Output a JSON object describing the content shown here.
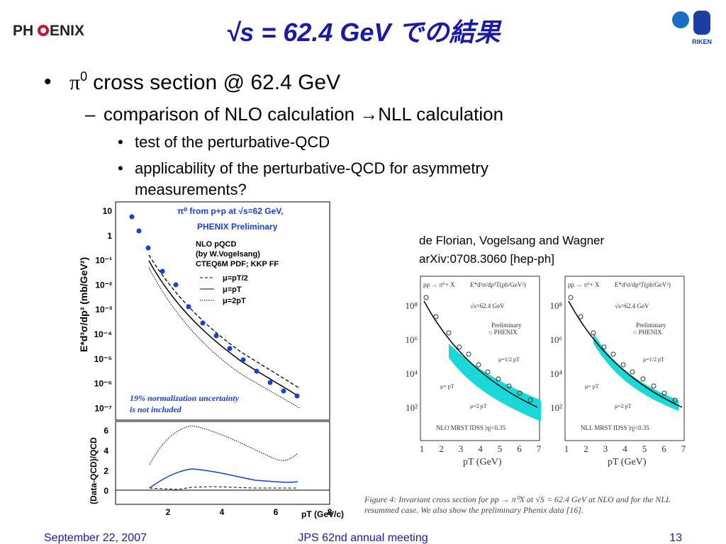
{
  "header": {
    "title": "√s = 62.4 GeV での結果",
    "logo_left": [
      "PH",
      "ENIX"
    ],
    "logo_right": "RIKEN"
  },
  "bullet1": {
    "symbol": "π",
    "sup": "0",
    "text": "cross section @ 62.4 GeV"
  },
  "bullet2": "comparison of NLO calculation →NLL calculation",
  "bullet3": [
    "test of the perturbative-QCD",
    "applicability of the perturbative-QCD for asymmetry",
    "measurements?"
  ],
  "left_plot": {
    "legend": [
      "π⁰ from p+p at √s=62 GeV,",
      "PHENIX Preliminary",
      "NLO pQCD",
      "(by W.Vogelsang)",
      "CTEQ6M PDF; KKP FF"
    ],
    "curves": [
      "μ=pT/2",
      "μ=pT",
      "μ=2pT"
    ],
    "ylabel": "E*d³σ/dp³ (mb/GeV²)",
    "yticks": [
      "10",
      "1",
      "10⁻¹",
      "10⁻²",
      "10⁻³",
      "10⁻⁴",
      "10⁻⁵",
      "10⁻⁶",
      "10⁻⁷"
    ],
    "note": [
      "19% normalization uncertainty",
      "is not included"
    ],
    "ratio_ylabel": "(Data-QCD)/QCD",
    "ratio_yticks": [
      "6",
      "4",
      "2",
      "0"
    ],
    "xticks": [
      "2",
      "4",
      "6",
      "8"
    ],
    "xlabel": "pT (GeV/c)"
  },
  "citation": [
    "de Florian, Vogelsang and Wagner",
    "arXiv:0708.3060 [hep-ph]"
  ],
  "right_plots": [
    {
      "process": "pp → π⁰+ X",
      "quantity": "E*d³σ/dp³T(pb/GeV²)",
      "energy": "√s=62.4 GeV",
      "data": [
        "Preliminary",
        "○ PHENIX"
      ],
      "scales": [
        "μ=1/2 pT",
        "μ= pT",
        "μ=2 pT"
      ],
      "footer": "NLO   MRST   fDSS   |η|<0.35"
    },
    {
      "process": "pp → π⁰+ X",
      "quantity": "E*d³σ/dp³T(pb/GeV²)",
      "energy": "√s=62.4 GeV",
      "data": [
        "Preliminary",
        "○ PHENIX"
      ],
      "scales": [
        "μ=1/2 pT",
        "μ= pT",
        "μ=2 pT"
      ],
      "footer": "NLL   MRST   fDSS   |η|<0.35"
    }
  ],
  "right_yticks": [
    "10⁸",
    "10⁶",
    "10⁴",
    "10²"
  ],
  "right_xticks": [
    "1",
    "2",
    "3",
    "4",
    "5",
    "6",
    "7"
  ],
  "right_xlabel": "pT  (GeV)",
  "caption": [
    "Figure 4:  Invariant cross section for pp → π⁰X at √S = 62.4 GeV at NLO and for the NLL",
    "resummed case. We also show the preliminary Phenix data [16]."
  ],
  "footer": {
    "date": "September 22, 2007",
    "meeting": "JPS 62nd annual meeting",
    "page": "13"
  }
}
